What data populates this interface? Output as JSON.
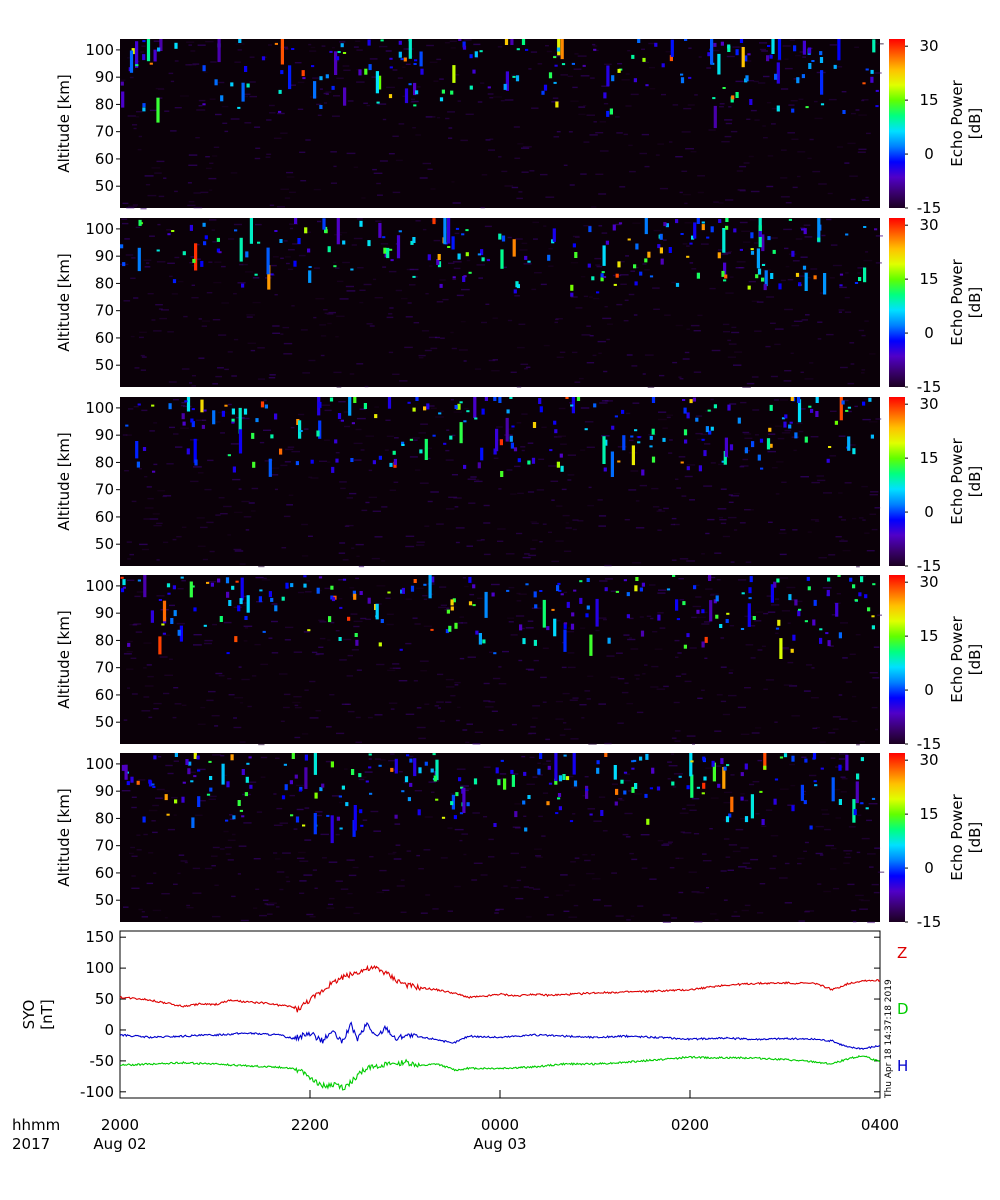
{
  "chart_data": [
    {
      "type": "heatmap",
      "panel": 1,
      "ylabel": "Altitude [km]",
      "yticks": [
        50,
        60,
        70,
        80,
        90,
        100
      ],
      "ylim": [
        42,
        104
      ],
      "colorbar": {
        "label": "Echo Power [dB]",
        "ticks": [
          -15,
          0,
          15,
          30
        ],
        "range": [
          -15,
          32
        ]
      },
      "background_db": -15,
      "echo_band_km": [
        75,
        104
      ],
      "seed": 11,
      "echo_count": 190
    },
    {
      "type": "heatmap",
      "panel": 2,
      "ylabel": "Altitude [km]",
      "yticks": [
        50,
        60,
        70,
        80,
        90,
        100
      ],
      "ylim": [
        42,
        104
      ],
      "colorbar": {
        "label": "Echo Power [dB]",
        "ticks": [
          -15,
          0,
          15,
          30
        ],
        "range": [
          -15,
          32
        ]
      },
      "background_db": -15,
      "echo_band_km": [
        75,
        104
      ],
      "seed": 23,
      "echo_count": 200
    },
    {
      "type": "heatmap",
      "panel": 3,
      "ylabel": "Altitude [km]",
      "yticks": [
        50,
        60,
        70,
        80,
        90,
        100
      ],
      "ylim": [
        42,
        104
      ],
      "colorbar": {
        "label": "Echo Power [dB]",
        "ticks": [
          -15,
          0,
          15,
          30
        ],
        "range": [
          -15,
          32
        ]
      },
      "background_db": -15,
      "echo_band_km": [
        75,
        104
      ],
      "seed": 37,
      "echo_count": 210
    },
    {
      "type": "heatmap",
      "panel": 4,
      "ylabel": "Altitude [km]",
      "yticks": [
        50,
        60,
        70,
        80,
        90,
        100
      ],
      "ylim": [
        42,
        104
      ],
      "colorbar": {
        "label": "Echo Power [dB]",
        "ticks": [
          -15,
          0,
          15,
          30
        ],
        "range": [
          -15,
          32
        ]
      },
      "background_db": -15,
      "echo_band_km": [
        75,
        104
      ],
      "seed": 53,
      "echo_count": 210
    },
    {
      "type": "heatmap",
      "panel": 5,
      "ylabel": "Altitude [km]",
      "yticks": [
        50,
        60,
        70,
        80,
        90,
        100
      ],
      "ylim": [
        42,
        104
      ],
      "colorbar": {
        "label": "Echo Power [dB]",
        "ticks": [
          -15,
          0,
          15,
          30
        ],
        "range": [
          -15,
          32
        ]
      },
      "background_db": -15,
      "echo_band_km": [
        75,
        104
      ],
      "seed": 71,
      "echo_count": 230
    },
    {
      "type": "line",
      "panel": 6,
      "ylabel": "SYO [nT]",
      "yticks": [
        -100,
        -50,
        0,
        50,
        100,
        150
      ],
      "ylim": [
        -110,
        160
      ],
      "series": [
        {
          "name": "Z",
          "color": "#dd0000",
          "points": [
            [
              0,
              53
            ],
            [
              15,
              50
            ],
            [
              30,
              43
            ],
            [
              40,
              38
            ],
            [
              50,
              42
            ],
            [
              60,
              41
            ],
            [
              70,
              48
            ],
            [
              80,
              45
            ],
            [
              90,
              44
            ],
            [
              100,
              40
            ],
            [
              108,
              38
            ],
            [
              112,
              33
            ],
            [
              118,
              45
            ],
            [
              125,
              58
            ],
            [
              132,
              72
            ],
            [
              140,
              85
            ],
            [
              148,
              92
            ],
            [
              155,
              98
            ],
            [
              162,
              100
            ],
            [
              168,
              92
            ],
            [
              175,
              80
            ],
            [
              182,
              72
            ],
            [
              190,
              68
            ],
            [
              200,
              65
            ],
            [
              210,
              60
            ],
            [
              220,
              53
            ],
            [
              230,
              54
            ],
            [
              240,
              58
            ],
            [
              250,
              55
            ],
            [
              260,
              58
            ],
            [
              270,
              56
            ],
            [
              280,
              57
            ],
            [
              300,
              60
            ],
            [
              330,
              62
            ],
            [
              360,
              65
            ],
            [
              380,
              72
            ],
            [
              400,
              75
            ],
            [
              420,
              76
            ],
            [
              440,
              75
            ],
            [
              450,
              65
            ],
            [
              460,
              75
            ],
            [
              470,
              80
            ],
            [
              480,
              80
            ]
          ]
        },
        {
          "name": "D",
          "color": "#00cc00",
          "points": [
            [
              0,
              -57
            ],
            [
              20,
              -55
            ],
            [
              40,
              -53
            ],
            [
              60,
              -55
            ],
            [
              80,
              -58
            ],
            [
              100,
              -60
            ],
            [
              110,
              -62
            ],
            [
              118,
              -72
            ],
            [
              124,
              -85
            ],
            [
              130,
              -92
            ],
            [
              136,
              -88
            ],
            [
              142,
              -95
            ],
            [
              148,
              -78
            ],
            [
              154,
              -65
            ],
            [
              160,
              -58
            ],
            [
              170,
              -56
            ],
            [
              180,
              -52
            ],
            [
              190,
              -58
            ],
            [
              200,
              -55
            ],
            [
              212,
              -65
            ],
            [
              220,
              -62
            ],
            [
              240,
              -62
            ],
            [
              260,
              -60
            ],
            [
              280,
              -55
            ],
            [
              300,
              -55
            ],
            [
              320,
              -52
            ],
            [
              340,
              -48
            ],
            [
              360,
              -44
            ],
            [
              380,
              -45
            ],
            [
              400,
              -45
            ],
            [
              420,
              -48
            ],
            [
              440,
              -52
            ],
            [
              450,
              -55
            ],
            [
              460,
              -46
            ],
            [
              470,
              -42
            ],
            [
              480,
              -52
            ]
          ]
        },
        {
          "name": "H",
          "color": "#0000cc",
          "points": [
            [
              0,
              -8
            ],
            [
              20,
              -12
            ],
            [
              40,
              -10
            ],
            [
              60,
              -8
            ],
            [
              80,
              -5
            ],
            [
              100,
              -8
            ],
            [
              110,
              -14
            ],
            [
              120,
              -5
            ],
            [
              128,
              -18
            ],
            [
              134,
              -2
            ],
            [
              140,
              -20
            ],
            [
              146,
              8
            ],
            [
              150,
              -15
            ],
            [
              156,
              10
            ],
            [
              162,
              -12
            ],
            [
              168,
              5
            ],
            [
              174,
              -15
            ],
            [
              180,
              -8
            ],
            [
              190,
              -12
            ],
            [
              200,
              -15
            ],
            [
              210,
              -22
            ],
            [
              220,
              -10
            ],
            [
              240,
              -12
            ],
            [
              260,
              -8
            ],
            [
              280,
              -10
            ],
            [
              300,
              -12
            ],
            [
              320,
              -10
            ],
            [
              340,
              -12
            ],
            [
              360,
              -15
            ],
            [
              380,
              -13
            ],
            [
              400,
              -15
            ],
            [
              420,
              -14
            ],
            [
              440,
              -15
            ],
            [
              450,
              -18
            ],
            [
              460,
              -28
            ],
            [
              470,
              -30
            ],
            [
              480,
              -25
            ]
          ]
        }
      ]
    }
  ],
  "time_axis": {
    "row1_caption": "hhmm",
    "row2_caption": "2017",
    "xlim_minutes": [
      0,
      480
    ],
    "ticks": [
      {
        "minute": 0,
        "time": "2000",
        "date": "Aug 02"
      },
      {
        "minute": 120,
        "time": "2200",
        "date": ""
      },
      {
        "minute": 240,
        "time": "0000",
        "date": "Aug 03"
      },
      {
        "minute": 360,
        "time": "0200",
        "date": ""
      },
      {
        "minute": 480,
        "time": "0400",
        "date": ""
      }
    ]
  },
  "timestamp": "Thu Apr 18 14:37:18 2019",
  "colors": {
    "background": "#ffffff",
    "heatmap_background": "#0a0008",
    "colorscale": [
      "#1a0020",
      "#3a0070",
      "#5000c8",
      "#0000ff",
      "#0080ff",
      "#00e0ff",
      "#00ff80",
      "#60ff00",
      "#e0ff00",
      "#ffc000",
      "#ff6000",
      "#ff0000"
    ]
  }
}
